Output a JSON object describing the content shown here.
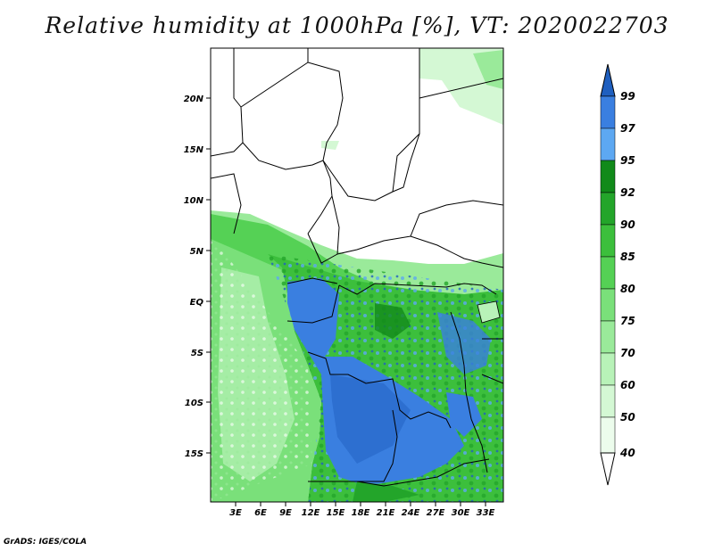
{
  "title": "Relative humidity at 1000hPa [%], VT: 2020022703",
  "credit": "GrADS: IGES/COLA",
  "lat_ticks": [
    "20N",
    "15N",
    "10N",
    "5N",
    "EQ",
    "5S",
    "10S",
    "15S"
  ],
  "lon_ticks": [
    "3E",
    "6E",
    "9E",
    "12E",
    "15E",
    "18E",
    "21E",
    "24E",
    "27E",
    "30E",
    "33E"
  ],
  "colorbar": {
    "labels": [
      "99",
      "97",
      "95",
      "92",
      "90",
      "85",
      "80",
      "75",
      "70",
      "60",
      "50",
      "40"
    ],
    "colors": [
      "#1f5fbf",
      "#3a7fe0",
      "#5da8f2",
      "#118a1a",
      "#23a52a",
      "#3cbf3c",
      "#55d155",
      "#7ae07a",
      "#9aea9a",
      "#b8f2b8",
      "#d4f8d4",
      "#ecfcec"
    ]
  },
  "map_colors": {
    "dry": "#ffffff",
    "ocean": "#7ae07a",
    "ocean_light": "#b8f2b8",
    "wet_green": "#3cbf3c",
    "dark_green": "#118a1a",
    "blue": "#3a7fe0",
    "light_blue": "#5da8f2",
    "border": "#000000"
  }
}
